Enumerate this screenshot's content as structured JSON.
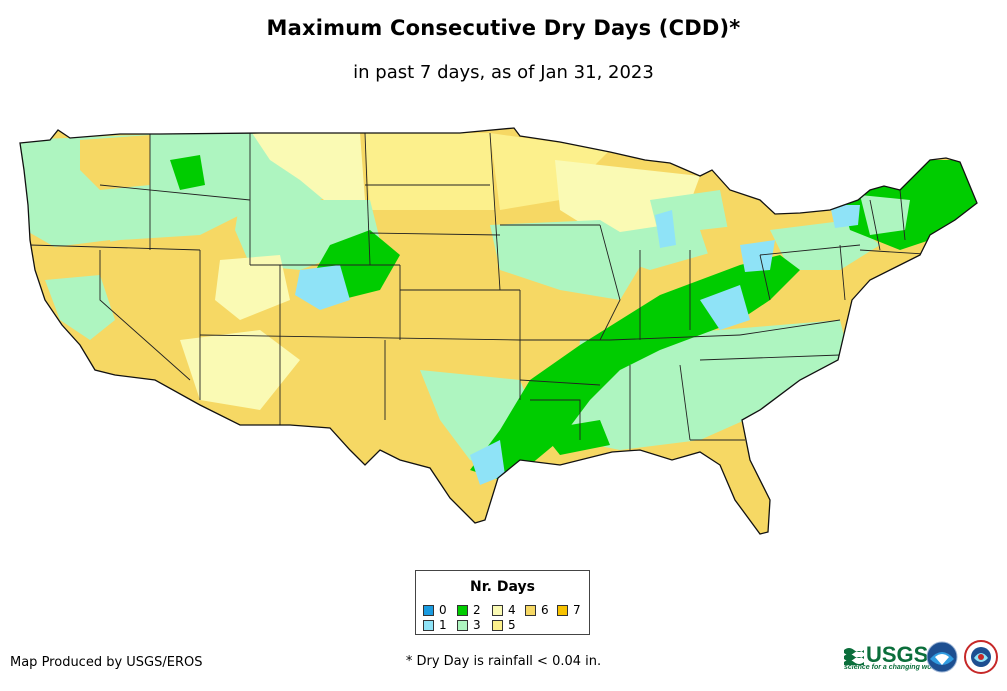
{
  "title": "Maximum Consecutive Dry Days (CDD)*",
  "subtitle": "in past 7 days, as of Jan 31, 2023",
  "legend": {
    "title": "Nr. Days",
    "items": [
      {
        "label": "0",
        "color": "#1a9be0"
      },
      {
        "label": "1",
        "color": "#8fe3f7"
      },
      {
        "label": "2",
        "color": "#00cc00"
      },
      {
        "label": "3",
        "color": "#aef5c0"
      },
      {
        "label": "4",
        "color": "#fafab4"
      },
      {
        "label": "5",
        "color": "#fcf08c"
      },
      {
        "label": "6",
        "color": "#f6d864"
      },
      {
        "label": "7",
        "color": "#f7c200"
      }
    ]
  },
  "credit": "Map Produced by USGS/EROS",
  "footnote": "* Dry Day is rainfall < 0.04 in.",
  "logos": {
    "usgs": "USGS",
    "usgs_tagline": "science for a changing world"
  }
}
